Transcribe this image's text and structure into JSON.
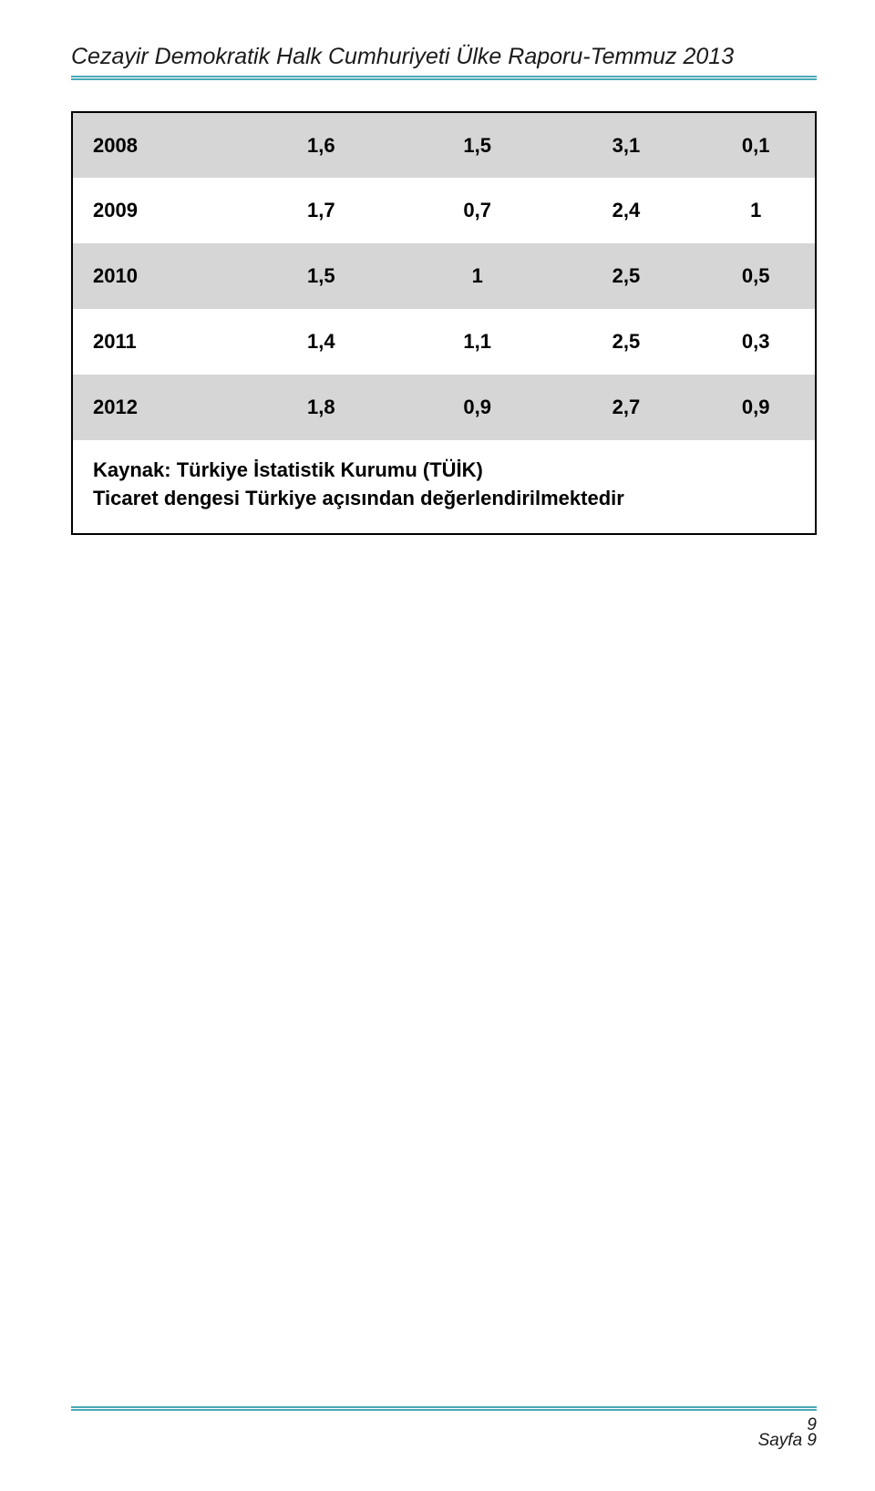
{
  "header": {
    "title": "Cezayir Demokratik Halk Cumhuriyeti Ülke Raporu-Temmuz 2013"
  },
  "colors": {
    "rule": "#4aa9b8",
    "shaded_row_bg": "#d6d6d6",
    "page_bg": "#ffffff",
    "text": "#000000"
  },
  "table": {
    "rows": [
      {
        "year": "2008",
        "c1": "1,6",
        "c2": "1,5",
        "c3": "3,1",
        "c4": "0,1",
        "shaded": true
      },
      {
        "year": "2009",
        "c1": "1,7",
        "c2": "0,7",
        "c3": "2,4",
        "c4": "1",
        "shaded": false
      },
      {
        "year": "2010",
        "c1": "1,5",
        "c2": "1",
        "c3": "2,5",
        "c4": "0,5",
        "shaded": true
      },
      {
        "year": "2011",
        "c1": "1,4",
        "c2": "1,1",
        "c3": "2,5",
        "c4": "0,3",
        "shaded": false
      },
      {
        "year": "2012",
        "c1": "1,8",
        "c2": "0,9",
        "c3": "2,7",
        "c4": "0,9",
        "shaded": true
      }
    ],
    "source_line1": "Kaynak: Türkiye İstatistik Kurumu (TÜİK)",
    "source_line2": "Ticaret dengesi Türkiye açısından değerlendirilmektedir"
  },
  "footer": {
    "page_number": "9",
    "page_label": "Sayfa 9"
  }
}
